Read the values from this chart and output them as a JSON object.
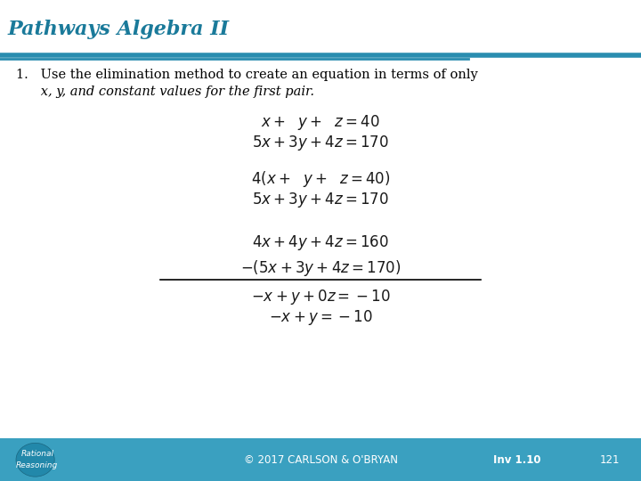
{
  "title": "Pathways Algebra II",
  "title_color": "#1a7a9a",
  "header_bg_color": "#ffffff",
  "header_line_color": "#2a8db0",
  "body_bg_color": "#ffffff",
  "footer_bg_color": "#3aa0c0",
  "footer_text": "© 2017 CARLSON & O'BRYAN",
  "footer_right1": "Inv 1.10",
  "footer_right2": "121",
  "math_color": "#1a1a1a",
  "instruction_line1": "1.   Use the elimination method to create an equation in terms of only",
  "instruction_line2": "      x, y, and constant values for the first pair.",
  "figsize": [
    7.2,
    5.4
  ],
  "dpi": 100
}
